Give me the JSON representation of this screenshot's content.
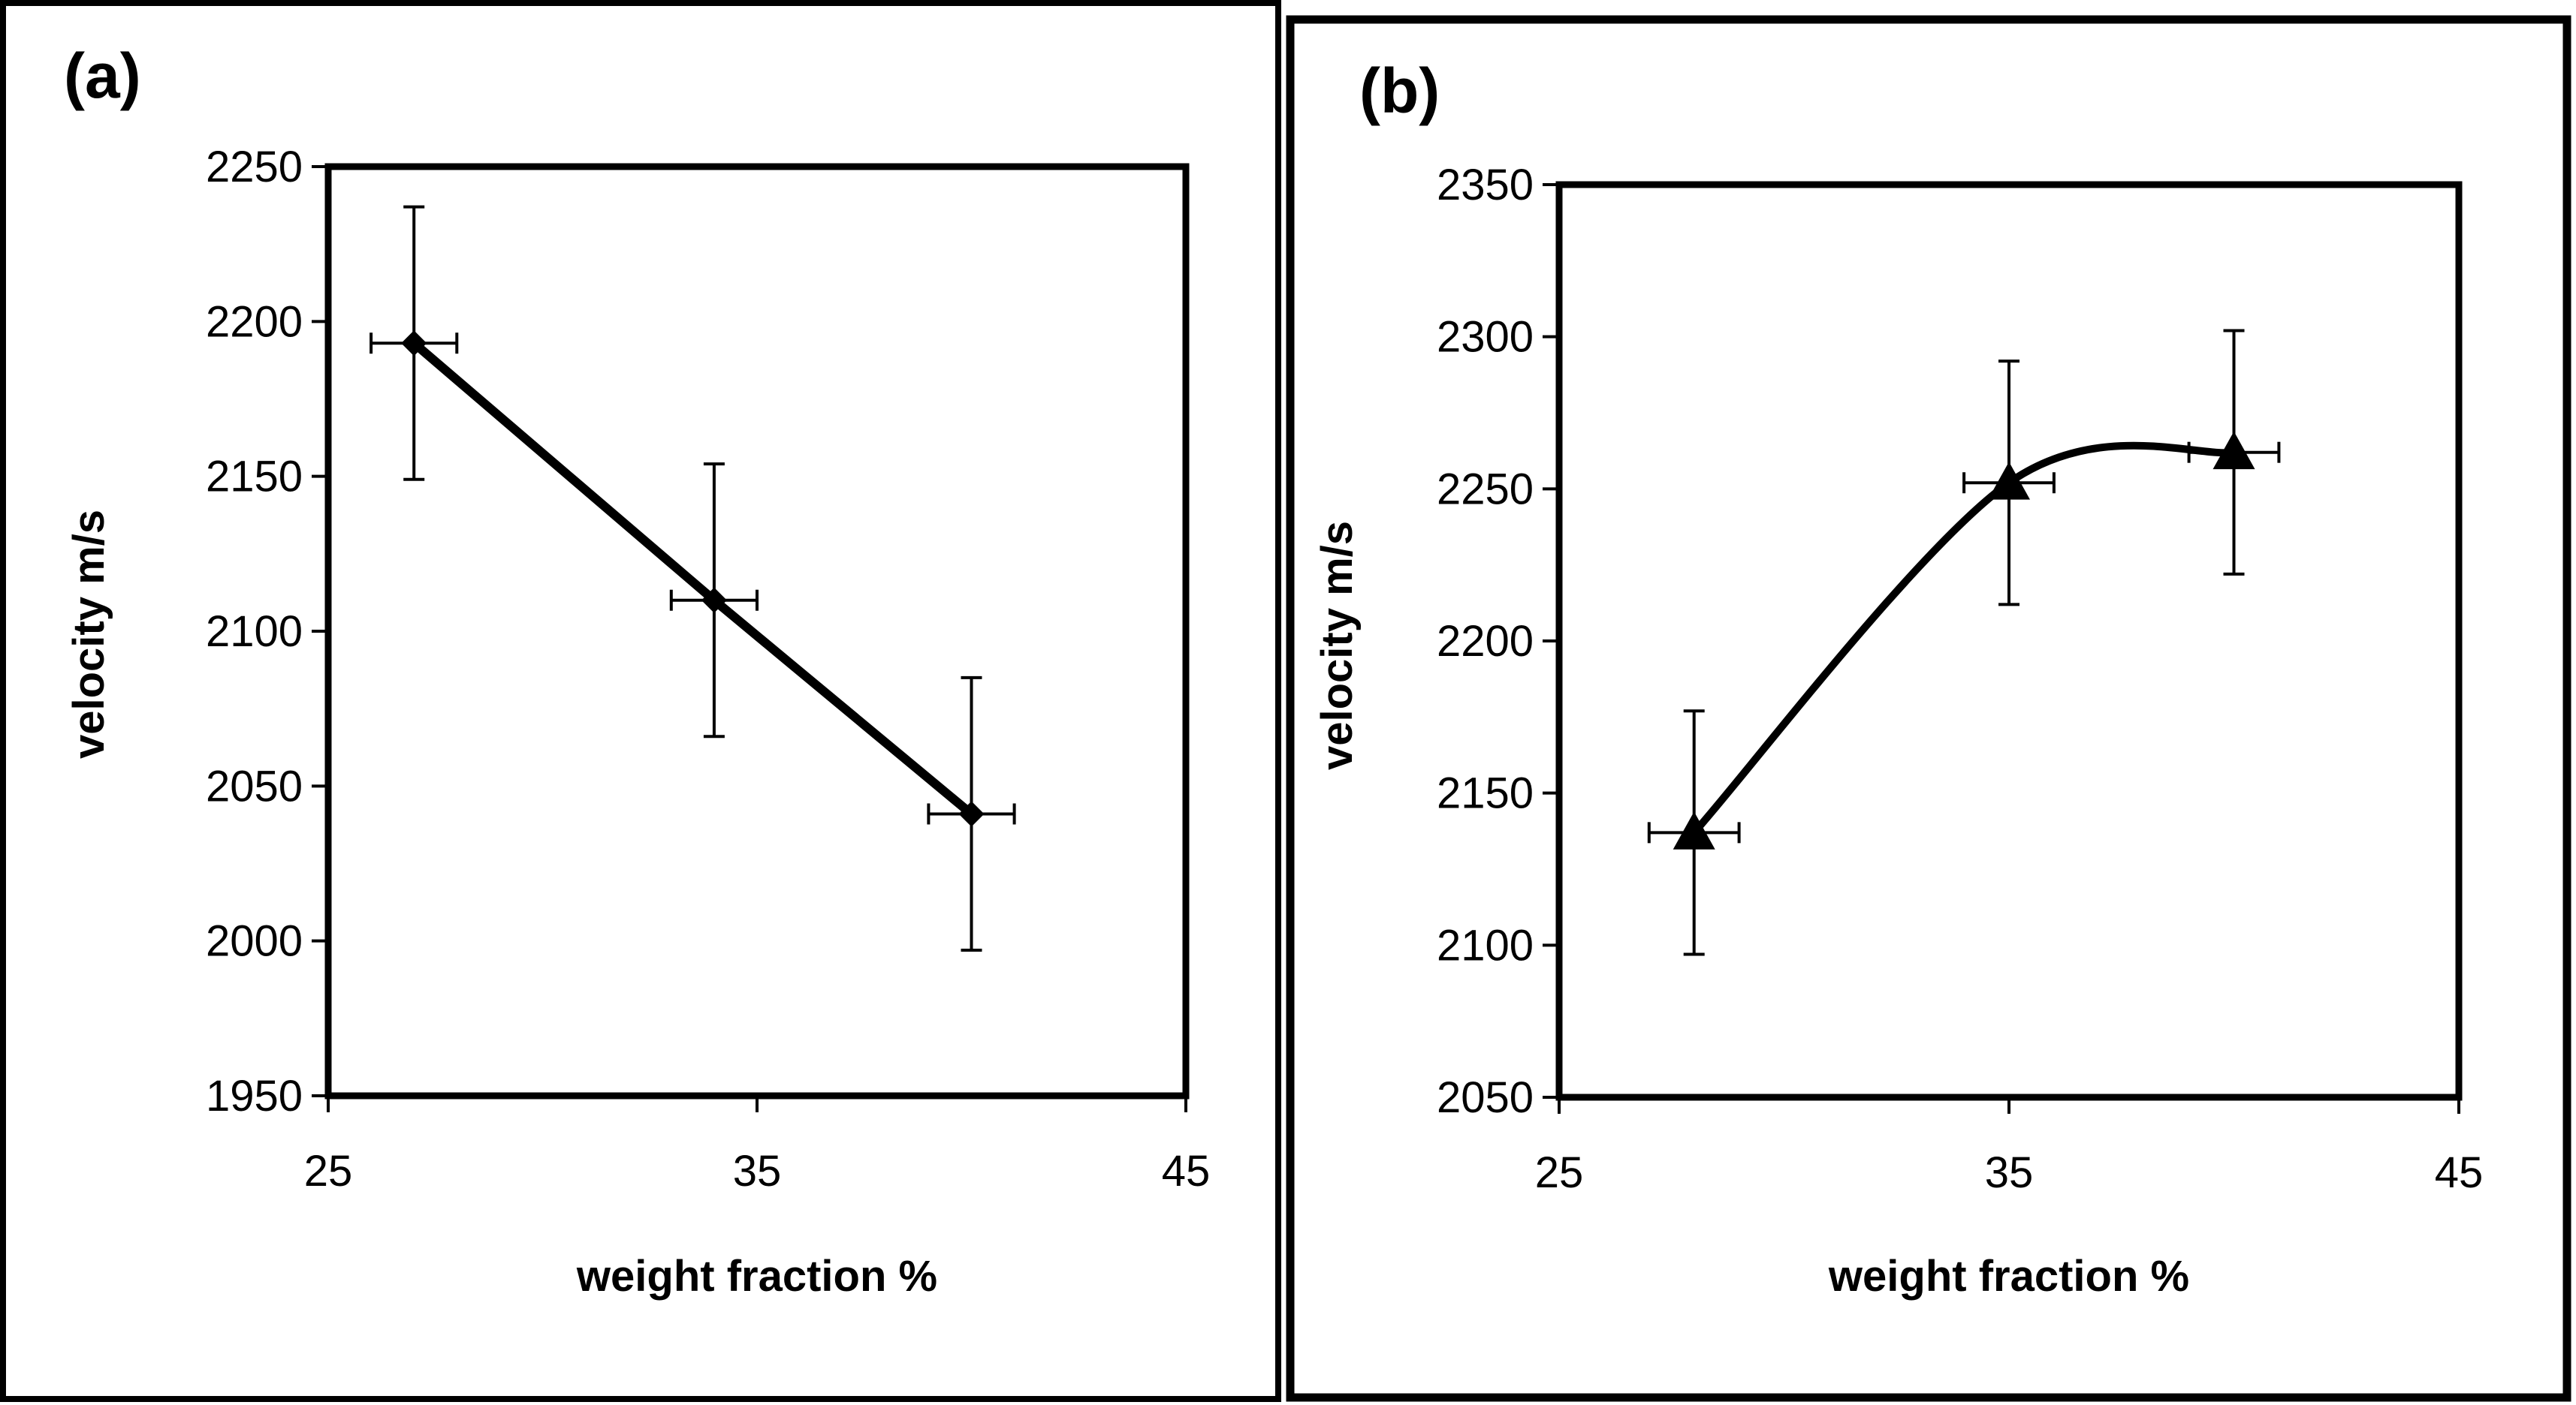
{
  "chart_data": [
    {
      "panel": "(a)",
      "type": "line",
      "marker": "diamond",
      "xlabel": "weight fraction %",
      "ylabel": "velocity m/s",
      "xlim": [
        25,
        45
      ],
      "ylim": [
        1950,
        2250
      ],
      "xticks": [
        "25",
        "35",
        "45"
      ],
      "yticks": [
        "1950",
        "2000",
        "2050",
        "2100",
        "2150",
        "2200",
        "2250"
      ],
      "curve": "straight",
      "grid": false,
      "points": [
        {
          "x": 27,
          "y": 2193,
          "yerr_low": 2149,
          "yerr_high": 2237,
          "xerr_low": 26,
          "xerr_high": 28
        },
        {
          "x": 34,
          "y": 2110,
          "yerr_low": 2066,
          "yerr_high": 2154,
          "xerr_low": 33,
          "xerr_high": 35
        },
        {
          "x": 40,
          "y": 2041,
          "yerr_low": 1997,
          "yerr_high": 2085,
          "xerr_low": 39,
          "xerr_high": 41
        }
      ]
    },
    {
      "panel": "(b)",
      "type": "line",
      "marker": "triangle",
      "xlabel": "weight fraction %",
      "ylabel": "velocity m/s",
      "xlim": [
        25,
        45
      ],
      "ylim": [
        2050,
        2350
      ],
      "xticks": [
        "25",
        "35",
        "45"
      ],
      "yticks": [
        "2050",
        "2100",
        "2150",
        "2200",
        "2250",
        "2300",
        "2350"
      ],
      "curve": "smooth",
      "grid": false,
      "points": [
        {
          "x": 28,
          "y": 2137,
          "yerr_low": 2097,
          "yerr_high": 2177,
          "xerr_low": 27,
          "xerr_high": 29
        },
        {
          "x": 35,
          "y": 2252,
          "yerr_low": 2212,
          "yerr_high": 2292,
          "xerr_low": 34,
          "xerr_high": 36
        },
        {
          "x": 40,
          "y": 2262,
          "yerr_low": 2222,
          "yerr_high": 2302,
          "xerr_low": 39,
          "xerr_high": 41
        }
      ]
    }
  ]
}
